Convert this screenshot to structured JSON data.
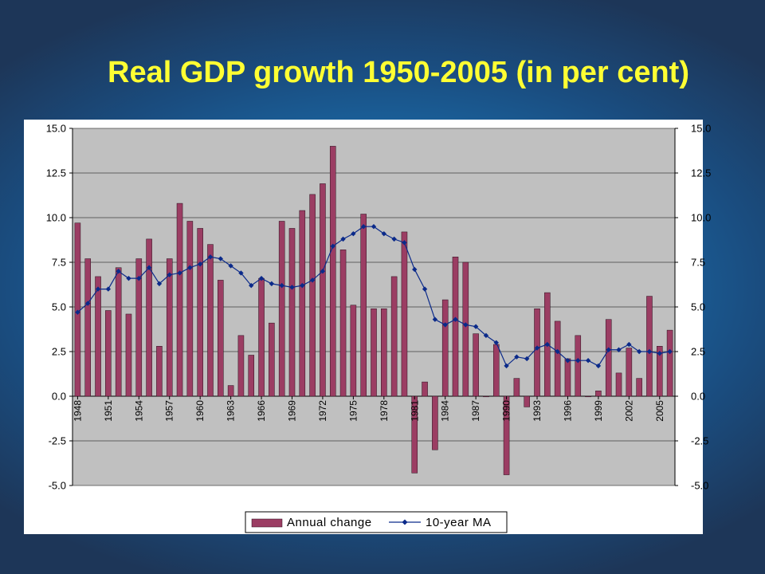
{
  "slide": {
    "title": "Real GDP growth 1950-2005 (in per cent)"
  },
  "colors": {
    "title": "#ffff33",
    "bar_fill": "#9b3d63",
    "bar_stroke": "#2a0f1c",
    "line": "#0b2a8a",
    "plot_bg": "#c0c0c0",
    "chart_bg": "#ffffff"
  },
  "chart_data": {
    "type": "bar",
    "title": "",
    "xlabel": "",
    "ylabel": "",
    "ylim": [
      -5,
      15
    ],
    "yticks": [
      -5,
      -2.5,
      0,
      2.5,
      5,
      7.5,
      10,
      12.5,
      15
    ],
    "ytick_labels": [
      "-5.0",
      "-2.5",
      "0.0",
      "2.5",
      "5.0",
      "7.5",
      "10.0",
      "12.5",
      "15.0"
    ],
    "secondary_ytick_labels": [
      "-5.0",
      "-2.5",
      "0.0",
      "2.5",
      "5.0",
      "7.5",
      "10.0",
      "12.5",
      "15.0"
    ],
    "grid": "horizontal",
    "legend_position": "bottom",
    "categories": [
      1948,
      1949,
      1950,
      1951,
      1952,
      1953,
      1954,
      1955,
      1956,
      1957,
      1958,
      1959,
      1960,
      1961,
      1962,
      1963,
      1964,
      1965,
      1966,
      1967,
      1968,
      1969,
      1970,
      1971,
      1972,
      1973,
      1974,
      1975,
      1976,
      1977,
      1978,
      1979,
      1980,
      1981,
      1982,
      1983,
      1984,
      1985,
      1986,
      1987,
      1988,
      1989,
      1990,
      1991,
      1992,
      1993,
      1994,
      1995,
      1996,
      1997,
      1998,
      1999,
      2000,
      2001,
      2002,
      2003,
      2004,
      2005,
      2006
    ],
    "x_tick_labels": [
      "1948",
      "1951",
      "1954",
      "1957",
      "1960",
      "1963",
      "1966",
      "1969",
      "1972",
      "1975",
      "1978",
      "1981",
      "1984",
      "1987",
      "1990",
      "1993",
      "1996",
      "1999",
      "2002",
      "2005"
    ],
    "series": [
      {
        "name": "Annual change",
        "type": "bar",
        "values": [
          9.7,
          7.7,
          6.7,
          4.8,
          7.2,
          4.6,
          7.7,
          8.8,
          2.8,
          7.7,
          10.8,
          9.8,
          9.4,
          8.5,
          6.5,
          0.6,
          3.4,
          2.3,
          6.6,
          4.1,
          9.8,
          9.4,
          10.4,
          11.3,
          11.9,
          14.0,
          8.2,
          5.1,
          10.2,
          4.9,
          4.9,
          6.7,
          9.2,
          -4.3,
          0.8,
          -3.0,
          5.4,
          7.8,
          7.5,
          3.5,
          0.0,
          2.9,
          -4.4,
          1.0,
          -0.6,
          4.9,
          5.8,
          4.2,
          2.1,
          3.4,
          0.0,
          0.3,
          4.3,
          1.3,
          2.7,
          1.0,
          5.6,
          2.8,
          3.7
        ]
      },
      {
        "name": "10-year MA",
        "type": "line",
        "values": [
          4.7,
          5.2,
          6.0,
          6.0,
          7.0,
          6.6,
          6.6,
          7.2,
          6.3,
          6.8,
          6.9,
          7.2,
          7.4,
          7.8,
          7.7,
          7.3,
          6.9,
          6.2,
          6.6,
          6.3,
          6.2,
          6.1,
          6.2,
          6.5,
          7.0,
          8.4,
          8.8,
          9.1,
          9.5,
          9.5,
          9.1,
          8.8,
          8.6,
          7.1,
          6.0,
          4.3,
          4.0,
          4.3,
          4.0,
          3.9,
          3.4,
          3.0,
          1.7,
          2.2,
          2.1,
          2.7,
          2.9,
          2.5,
          2.0,
          2.0,
          2.0,
          1.7,
          2.6,
          2.6,
          2.9,
          2.5,
          2.5,
          2.4,
          2.5
        ]
      }
    ]
  }
}
